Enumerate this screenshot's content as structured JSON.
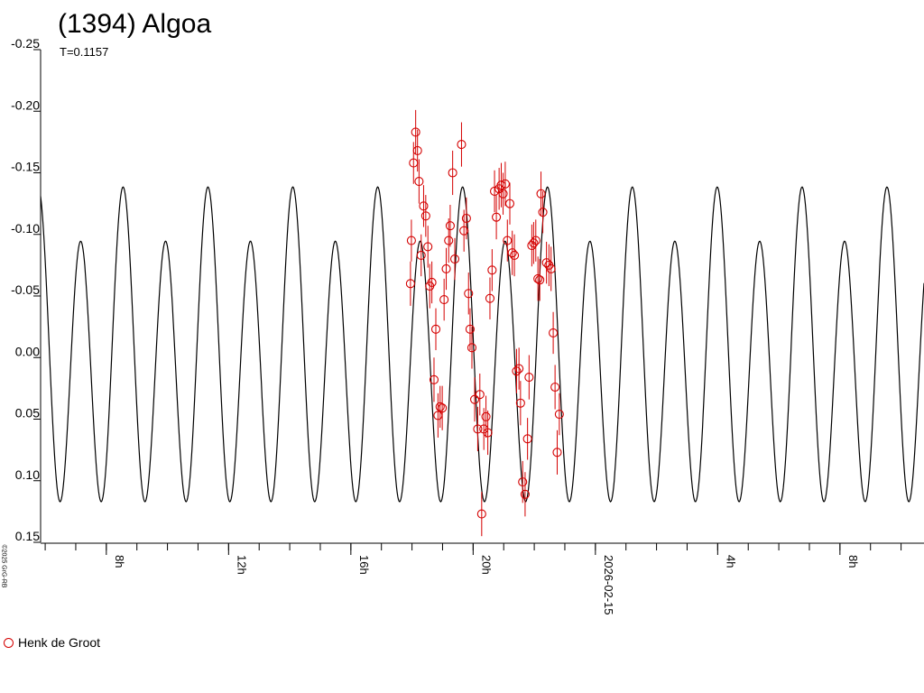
{
  "title": "(1394) Algoa",
  "subtitle": "T=0.1157",
  "credit": "©2025 GrG-RB",
  "legend": {
    "label": "Henk de Groot",
    "color": "#d40000"
  },
  "chart_data": {
    "type": "scatter",
    "title": "(1394) Algoa",
    "subtitle": "T=0.1157",
    "ylim": [
      0.15,
      -0.25
    ],
    "y_ticks": [
      "-0.25",
      "-0.20",
      "-0.15",
      "-0.10",
      "-0.05",
      "0.00",
      "0.05",
      "0.10",
      "0.15"
    ],
    "y_tick_values": [
      -0.25,
      -0.2,
      -0.15,
      -0.1,
      -0.05,
      0.0,
      0.05,
      0.1,
      0.15
    ],
    "x_unit": "hours since 2026-02-14 00:00",
    "xlim": [
      5.85,
      34.75
    ],
    "x_ticks": [
      {
        "x": 8,
        "label": "8h"
      },
      {
        "x": 12,
        "label": "12h"
      },
      {
        "x": 16,
        "label": "16h"
      },
      {
        "x": 20,
        "label": "20h"
      },
      {
        "x": 24,
        "label": "2026-02-15"
      },
      {
        "x": 28,
        "label": "4h"
      },
      {
        "x": 32,
        "label": "8h"
      }
    ],
    "minor_tick_step_hours": 1,
    "model_curve": {
      "period_hours": 2.7768,
      "mean": 0.0,
      "amp1": 0.022,
      "amp2": 0.1165,
      "phase_ref_hours": 7.16,
      "color": "#000000"
    },
    "series": [
      {
        "name": "Henk de Groot",
        "color": "#d40000",
        "points": [
          [
            17.95,
            -0.06,
            0.018
          ],
          [
            17.98,
            -0.095,
            0.017
          ],
          [
            18.05,
            -0.158,
            0.017
          ],
          [
            18.12,
            -0.183,
            0.018
          ],
          [
            18.18,
            -0.168,
            0.017
          ],
          [
            18.23,
            -0.143,
            0.018
          ],
          [
            18.3,
            -0.083,
            0.017
          ],
          [
            18.38,
            -0.123,
            0.017
          ],
          [
            18.45,
            -0.115,
            0.017
          ],
          [
            18.52,
            -0.09,
            0.017
          ],
          [
            18.58,
            -0.058,
            0.018
          ],
          [
            18.65,
            -0.061,
            0.017
          ],
          [
            18.72,
            0.018,
            0.018
          ],
          [
            18.78,
            -0.023,
            0.017
          ],
          [
            18.85,
            0.047,
            0.018
          ],
          [
            18.92,
            0.04,
            0.017
          ],
          [
            18.99,
            0.041,
            0.018
          ],
          [
            19.05,
            -0.047,
            0.017
          ],
          [
            19.12,
            -0.072,
            0.017
          ],
          [
            19.2,
            -0.095,
            0.018
          ],
          [
            19.25,
            -0.107,
            0.017
          ],
          [
            19.33,
            -0.15,
            0.018
          ],
          [
            19.4,
            -0.08,
            0.017
          ],
          [
            19.62,
            -0.173,
            0.018
          ],
          [
            19.7,
            -0.103,
            0.017
          ],
          [
            19.78,
            -0.113,
            0.017
          ],
          [
            19.85,
            -0.052,
            0.017
          ],
          [
            19.9,
            -0.023,
            0.017
          ],
          [
            19.96,
            -0.008,
            0.017
          ],
          [
            20.05,
            0.034,
            0.018
          ],
          [
            20.15,
            0.058,
            0.018
          ],
          [
            20.22,
            0.03,
            0.017
          ],
          [
            20.28,
            0.127,
            0.018
          ],
          [
            20.35,
            0.058,
            0.017
          ],
          [
            20.42,
            0.048,
            0.017
          ],
          [
            20.48,
            0.061,
            0.018
          ],
          [
            20.55,
            -0.048,
            0.017
          ],
          [
            20.62,
            -0.071,
            0.017
          ],
          [
            20.7,
            -0.135,
            0.017
          ],
          [
            20.76,
            -0.114,
            0.018
          ],
          [
            20.85,
            -0.137,
            0.017
          ],
          [
            20.92,
            -0.14,
            0.018
          ],
          [
            20.98,
            -0.133,
            0.017
          ],
          [
            21.05,
            -0.141,
            0.018
          ],
          [
            21.12,
            -0.095,
            0.017
          ],
          [
            21.2,
            -0.125,
            0.017
          ],
          [
            21.28,
            -0.085,
            0.018
          ],
          [
            21.35,
            -0.083,
            0.017
          ],
          [
            21.42,
            0.011,
            0.018
          ],
          [
            21.5,
            0.009,
            0.017
          ],
          [
            21.55,
            0.037,
            0.018
          ],
          [
            21.62,
            0.101,
            0.017
          ],
          [
            21.7,
            0.111,
            0.018
          ],
          [
            21.78,
            0.066,
            0.017
          ],
          [
            21.83,
            0.016,
            0.018
          ],
          [
            21.92,
            -0.091,
            0.017
          ],
          [
            21.98,
            -0.093,
            0.017
          ],
          [
            22.05,
            -0.095,
            0.017
          ],
          [
            22.12,
            -0.064,
            0.018
          ],
          [
            22.18,
            -0.063,
            0.017
          ],
          [
            22.22,
            -0.133,
            0.018
          ],
          [
            22.28,
            -0.118,
            0.017
          ],
          [
            22.4,
            -0.077,
            0.017
          ],
          [
            22.48,
            -0.075,
            0.017
          ],
          [
            22.55,
            -0.072,
            0.018
          ],
          [
            22.62,
            -0.02,
            0.017
          ],
          [
            22.68,
            0.024,
            0.018
          ],
          [
            22.75,
            0.077,
            0.018
          ],
          [
            22.82,
            0.046,
            0.017
          ]
        ]
      }
    ],
    "grid": false,
    "legend_position": "bottom-left"
  }
}
